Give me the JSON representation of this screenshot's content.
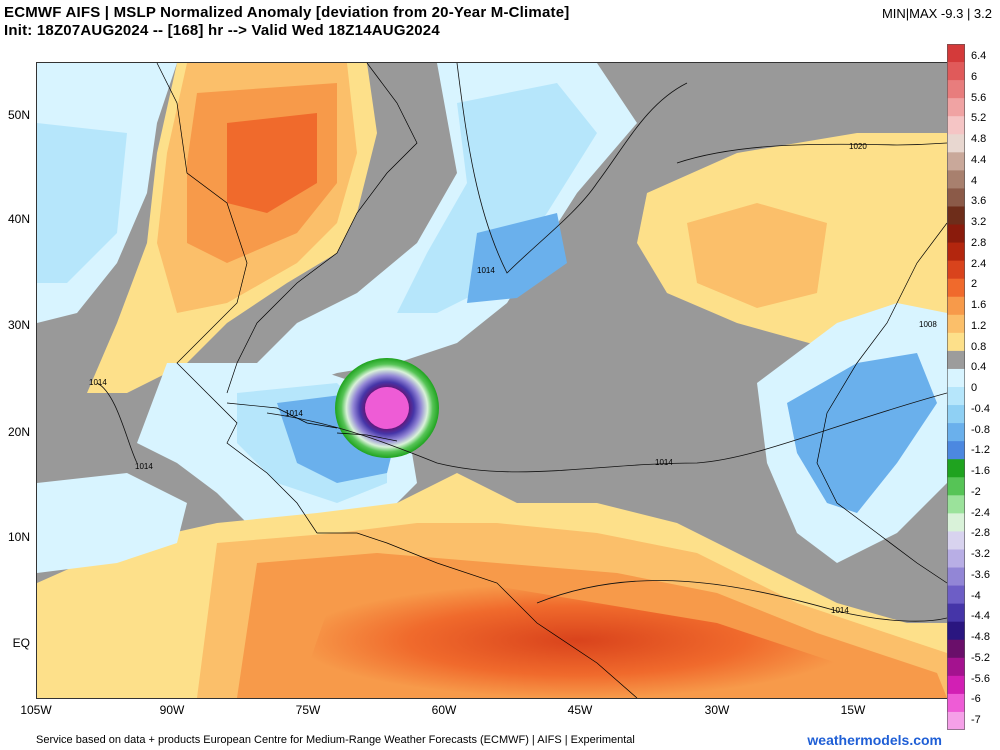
{
  "header": {
    "title_line1": "ECMWF AIFS | MSLP Normalized Anomaly [deviation from 20-Year M-Climate]",
    "title_line2": "Init: 18Z07AUG2024 -- [168] hr --> Valid Wed 18Z14AUG2024",
    "minmax": "MIN|MAX -9.3 | 3.2"
  },
  "axes": {
    "lat_labels": [
      "50N",
      "40N",
      "30N",
      "20N",
      "10N",
      "EQ"
    ],
    "lon_labels": [
      "105W",
      "90W",
      "75W",
      "60W",
      "45W",
      "30W",
      "15W"
    ]
  },
  "colorbar": {
    "labels": [
      "6.4",
      "6",
      "5.6",
      "5.2",
      "4.8",
      "4.4",
      "4",
      "3.6",
      "3.2",
      "2.8",
      "2.4",
      "2",
      "1.6",
      "1.2",
      "0.8",
      "0.4",
      "0",
      "-0.4",
      "-0.8",
      "-1.2",
      "-1.6",
      "-2",
      "-2.4",
      "-2.8",
      "-3.2",
      "-3.6",
      "-4",
      "-4.4",
      "-4.8",
      "-5.2",
      "-5.6",
      "-6",
      "-7"
    ],
    "colors": [
      "#d43a3a",
      "#e05a5a",
      "#e87d7d",
      "#f0a3a3",
      "#f5c5c5",
      "#e8d7d0",
      "#c9a89a",
      "#a8806e",
      "#8b5a48",
      "#6e2d1a",
      "#8a1b0c",
      "#b3260e",
      "#d9431c",
      "#f06a2c",
      "#f79a4a",
      "#fbbf6a",
      "#fde08a",
      "#9c9c9c",
      "#d8f4ff",
      "#b6e6fb",
      "#8fd0f4",
      "#6ab0ec",
      "#4c88e0",
      "#1fa31f",
      "#56c456",
      "#9be29b",
      "#d9f2d9",
      "#d8d3ef",
      "#b8aee5",
      "#9286d6",
      "#6d5ec6",
      "#4535a8",
      "#2a1680",
      "#6a0f6a",
      "#a4128f",
      "#d21fb4",
      "#ee5cd6",
      "#f5a0e8"
    ]
  },
  "map_labels": {
    "isobars": [
      "1020",
      "1014",
      "1014",
      "1014",
      "1014",
      "1014",
      "1008",
      "1014"
    ]
  },
  "footer": {
    "credit": "Service based on data + products European Centre for Medium-Range Weather Forecasts (ECMWF) | AIFS | Experimental",
    "brand": "weathermodels.com"
  }
}
